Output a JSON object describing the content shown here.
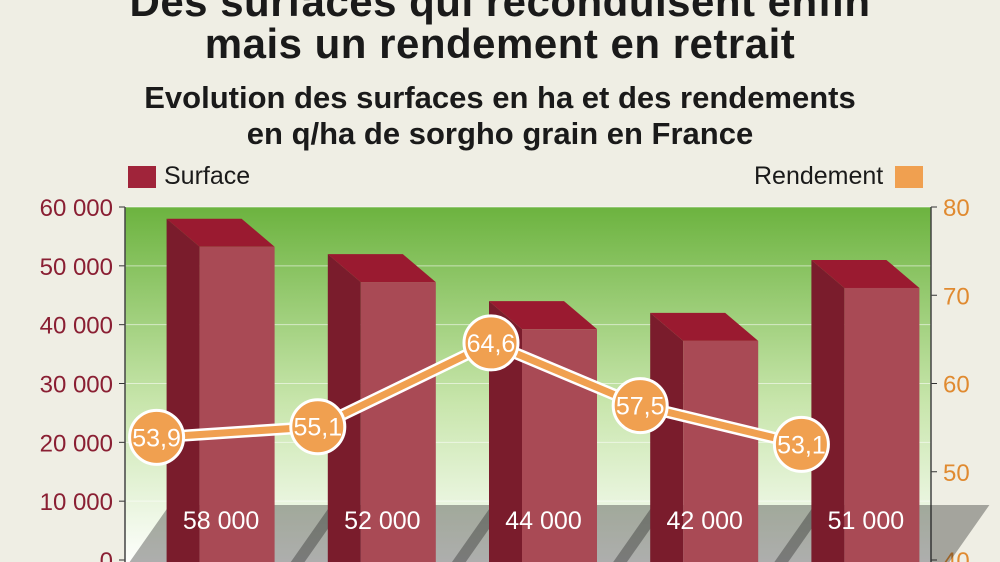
{
  "title_line1": "Des surfaces qui reconduisent enfin",
  "title_line2": "mais un rendement en retrait",
  "subtitle_line1": "Evolution des surfaces en ha et des rendements",
  "subtitle_line2": "en q/ha de sorgho grain en France",
  "colors": {
    "surface": "#a0243a",
    "rendement": "#f0a050",
    "grid_top": "#6cb33f",
    "grid_bottom": "#ffffff"
  },
  "chart_data": {
    "type": "bar",
    "categories": [
      "",
      "",
      "",
      "",
      ""
    ],
    "series": [
      {
        "name": "Surface",
        "axis": "left",
        "values": [
          58000,
          52000,
          44000,
          42000,
          51000
        ],
        "labels": [
          "58 000",
          "52 000",
          "44 000",
          "42 000",
          "51 000"
        ]
      },
      {
        "name": "Rendement",
        "type": "line",
        "axis": "right",
        "values": [
          53.9,
          55.1,
          64.6,
          57.5,
          53.1
        ],
        "labels": [
          "53,9",
          "55,1",
          "64,6",
          "57,5",
          "53,1"
        ]
      }
    ],
    "left_axis": {
      "ylim": [
        0,
        60000
      ],
      "ticks": [
        "0",
        "10 000",
        "20 000",
        "30 000",
        "40 000",
        "50 000",
        "60 000"
      ]
    },
    "right_axis": {
      "ylim": [
        40,
        80
      ],
      "ticks": [
        "40",
        "50",
        "60",
        "70",
        "80"
      ]
    },
    "legend": {
      "left": "Surface",
      "right": "Rendement"
    }
  }
}
